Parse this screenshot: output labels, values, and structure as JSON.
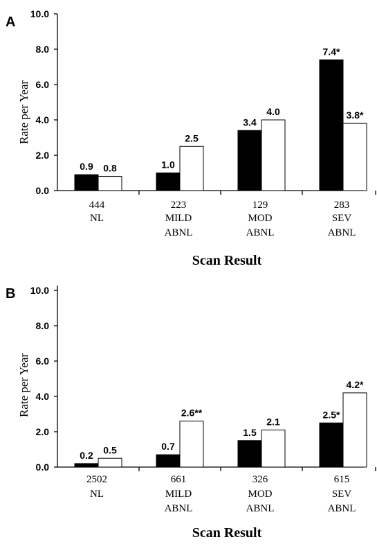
{
  "chart_data": [
    {
      "type": "bar",
      "panel": "A",
      "categories": [
        {
          "count": "444",
          "line1": "NL",
          "line2": ""
        },
        {
          "count": "223",
          "line1": "MILD",
          "line2": "ABNL"
        },
        {
          "count": "129",
          "line1": "MOD",
          "line2": "ABNL"
        },
        {
          "count": "283",
          "line1": "SEV",
          "line2": "ABNL"
        }
      ],
      "series": [
        {
          "fill": "#000000",
          "values": [
            0.9,
            1.0,
            3.4,
            7.4
          ],
          "labels": [
            "0.9",
            "1.0",
            "3.4",
            "7.4*"
          ]
        },
        {
          "fill": "#ffffff",
          "values": [
            0.8,
            2.5,
            4.0,
            3.8
          ],
          "labels": [
            "0.8",
            "2.5",
            "4.0",
            "3.8*"
          ]
        }
      ],
      "yticks": [
        "0.0",
        "2.0",
        "4.0",
        "6.0",
        "8.0",
        "10.0"
      ],
      "ylim": [
        0,
        10
      ],
      "ylabel": "Rate per Year",
      "xlabel": "Scan Result"
    },
    {
      "type": "bar",
      "panel": "B",
      "categories": [
        {
          "count": "2502",
          "line1": "NL",
          "line2": ""
        },
        {
          "count": "661",
          "line1": "MILD",
          "line2": "ABNL"
        },
        {
          "count": "326",
          "line1": "MOD",
          "line2": "ABNL"
        },
        {
          "count": "615",
          "line1": "SEV",
          "line2": "ABNL"
        }
      ],
      "series": [
        {
          "fill": "#000000",
          "values": [
            0.2,
            0.7,
            1.5,
            2.5
          ],
          "labels": [
            "0.2",
            "0.7",
            "1.5",
            "2.5*"
          ]
        },
        {
          "fill": "#ffffff",
          "values": [
            0.5,
            2.6,
            2.1,
            4.2
          ],
          "labels": [
            "0.5",
            "2.6**",
            "2.1",
            "4.2*"
          ]
        }
      ],
      "yticks": [
        "0.0",
        "2.0",
        "4.0",
        "6.0",
        "8.0",
        "10.0"
      ],
      "ylim": [
        0,
        10
      ],
      "ylabel": "Rate per Year",
      "xlabel": "Scan Result"
    }
  ]
}
